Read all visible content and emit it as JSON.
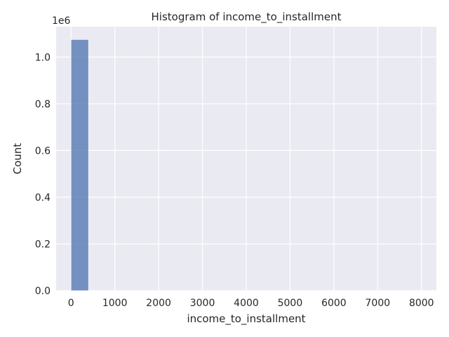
{
  "chart_data": {
    "type": "bar",
    "title": "Histogram of income_to_installment",
    "xlabel": "income_to_installment",
    "ylabel": "Count",
    "y_offset_label": "1e6",
    "xlim": [
      -340,
      8340
    ],
    "ylim": [
      0,
      1.13
    ],
    "x_ticks": [
      0,
      1000,
      2000,
      3000,
      4000,
      5000,
      6000,
      7000,
      8000
    ],
    "x_tick_labels": [
      "0",
      "1000",
      "2000",
      "3000",
      "4000",
      "5000",
      "6000",
      "7000",
      "8000"
    ],
    "y_ticks": [
      0.0,
      0.2,
      0.4,
      0.6,
      0.8,
      1.0
    ],
    "y_tick_labels": [
      "0.0",
      "0.2",
      "0.4",
      "0.6",
      "0.8",
      "1.0"
    ],
    "bins": [
      {
        "x0": 0,
        "x1": 400,
        "count": 1.075
      }
    ],
    "grid": true,
    "colors": {
      "background": "#eaeaf2",
      "bar": "#4c72b0",
      "grid": "#ffffff"
    }
  }
}
